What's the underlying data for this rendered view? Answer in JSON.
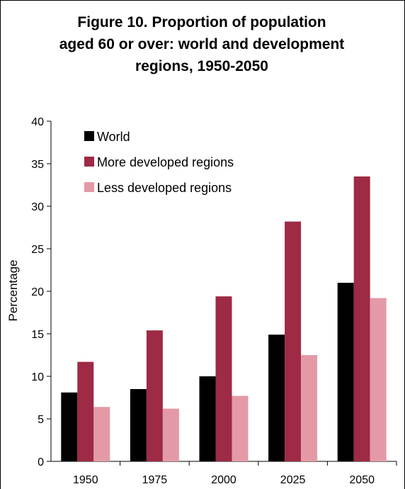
{
  "chart_data": {
    "type": "bar",
    "title": "Figure 10.  Proportion of population\naged 60 or over: world and development\nregions, 1950-2050",
    "xlabel": "",
    "ylabel": "Percentage",
    "categories": [
      "1950",
      "1975",
      "2000",
      "2025",
      "2050"
    ],
    "ylim": [
      0,
      40
    ],
    "yticks": [
      0,
      5,
      10,
      15,
      20,
      25,
      30,
      35,
      40
    ],
    "grid": false,
    "legend_position": "top-left",
    "series": [
      {
        "name": "World",
        "color": "#000000",
        "values": [
          8.1,
          8.5,
          10.0,
          14.9,
          21.0
        ]
      },
      {
        "name": "More developed regions",
        "color": "#9e2a45",
        "values": [
          11.7,
          15.4,
          19.4,
          28.2,
          33.5
        ]
      },
      {
        "name": "Less developed regions",
        "color": "#e49aa6",
        "values": [
          6.4,
          6.2,
          7.7,
          12.5,
          19.2
        ]
      }
    ]
  }
}
